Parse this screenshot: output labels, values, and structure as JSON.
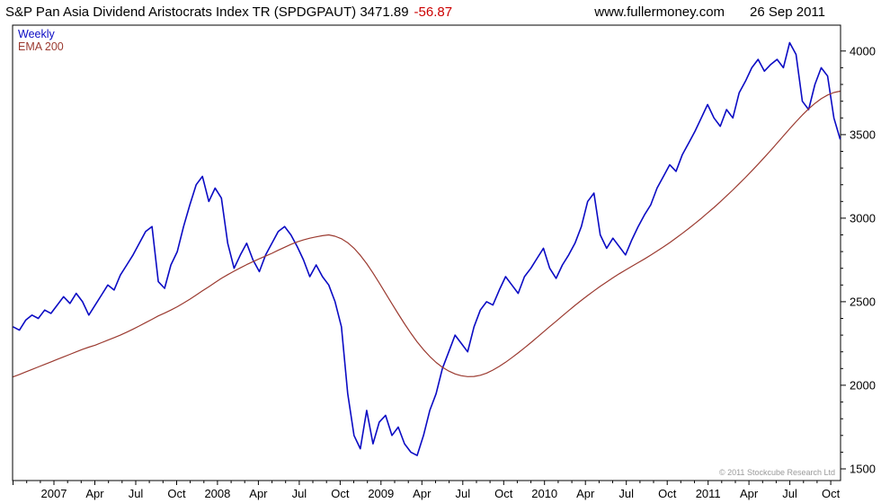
{
  "header": {
    "title": "S&P Pan Asia Dividend Aristocrats Index TR (SPDGPAUT) 3471.89",
    "change": "-56.87",
    "site": "www.fullermoney.com",
    "date": "26 Sep 2011"
  },
  "footer": {
    "copyright": "© 2011 Stockcube Research Ltd"
  },
  "colors": {
    "price": "#0b0bc4",
    "ema": "#9b3a30",
    "change": "#cc0000",
    "text": "#000000",
    "copyright": "#9a9a9a",
    "border": "#000000"
  },
  "chart_data": {
    "type": "line",
    "title": "S&P Pan Asia Dividend Aristocrats Index TR (SPDGPAUT)",
    "last_price": 3471.89,
    "change": -56.87,
    "frequency": "Weekly",
    "x_start": 2006.75,
    "x_step_years": 0.03861,
    "x_axis": {
      "range": [
        2006.747,
        2011.81
      ],
      "labels": [
        {
          "text": "2007",
          "t": 2007.0
        },
        {
          "text": "Apr",
          "t": 2007.25
        },
        {
          "text": "Jul",
          "t": 2007.5
        },
        {
          "text": "Oct",
          "t": 2007.75
        },
        {
          "text": "2008",
          "t": 2008.0
        },
        {
          "text": "Apr",
          "t": 2008.25
        },
        {
          "text": "Jul",
          "t": 2008.5
        },
        {
          "text": "Oct",
          "t": 2008.75
        },
        {
          "text": "2009",
          "t": 2009.0
        },
        {
          "text": "Apr",
          "t": 2009.25
        },
        {
          "text": "Jul",
          "t": 2009.5
        },
        {
          "text": "Oct",
          "t": 2009.75
        },
        {
          "text": "2010",
          "t": 2010.0
        },
        {
          "text": "Apr",
          "t": 2010.25
        },
        {
          "text": "Jul",
          "t": 2010.5
        },
        {
          "text": "Oct",
          "t": 2010.75
        },
        {
          "text": "2011",
          "t": 2011.0
        },
        {
          "text": "Apr",
          "t": 2011.25
        },
        {
          "text": "Jul",
          "t": 2011.5
        },
        {
          "text": "Oct",
          "t": 2011.75
        }
      ]
    },
    "y_axis": {
      "range": [
        1430,
        4155
      ],
      "ticks": [
        1500,
        2000,
        2500,
        3000,
        3500,
        4000
      ],
      "minor_step": 100,
      "position": "right"
    },
    "series": [
      {
        "name": "Weekly",
        "color_key": "price",
        "data_name": "price-line",
        "values": [
          2350,
          2330,
          2390,
          2420,
          2400,
          2450,
          2430,
          2480,
          2530,
          2490,
          2550,
          2500,
          2420,
          2480,
          2540,
          2600,
          2570,
          2660,
          2720,
          2780,
          2850,
          2920,
          2950,
          2620,
          2580,
          2720,
          2800,
          2950,
          3080,
          3200,
          3250,
          3100,
          3180,
          3120,
          2850,
          2700,
          2780,
          2850,
          2750,
          2680,
          2780,
          2850,
          2920,
          2950,
          2900,
          2830,
          2750,
          2650,
          2720,
          2650,
          2600,
          2500,
          2350,
          1950,
          1700,
          1620,
          1850,
          1650,
          1780,
          1820,
          1700,
          1750,
          1650,
          1600,
          1580,
          1700,
          1850,
          1950,
          2100,
          2200,
          2300,
          2250,
          2200,
          2350,
          2450,
          2500,
          2480,
          2570,
          2650,
          2600,
          2550,
          2650,
          2700,
          2760,
          2820,
          2700,
          2640,
          2720,
          2780,
          2850,
          2950,
          3100,
          3150,
          2900,
          2820,
          2880,
          2830,
          2780,
          2870,
          2950,
          3020,
          3080,
          3180,
          3250,
          3320,
          3280,
          3380,
          3450,
          3520,
          3600,
          3680,
          3600,
          3550,
          3650,
          3600,
          3750,
          3820,
          3900,
          3950,
          3880,
          3920,
          3950,
          3900,
          4050,
          3980,
          3700,
          3650,
          3800,
          3900,
          3850,
          3600,
          3471.89
        ]
      },
      {
        "name": "EMA 200",
        "color_key": "ema",
        "data_name": "ema-line",
        "values": [
          2050,
          2065,
          2080,
          2095,
          2110,
          2125,
          2140,
          2155,
          2170,
          2185,
          2200,
          2215,
          2228,
          2240,
          2255,
          2270,
          2285,
          2300,
          2318,
          2336,
          2355,
          2375,
          2395,
          2415,
          2432,
          2450,
          2470,
          2492,
          2515,
          2540,
          2565,
          2590,
          2615,
          2640,
          2662,
          2683,
          2703,
          2722,
          2740,
          2757,
          2773,
          2790,
          2808,
          2826,
          2843,
          2858,
          2870,
          2880,
          2888,
          2895,
          2900,
          2892,
          2877,
          2853,
          2820,
          2778,
          2728,
          2672,
          2612,
          2550,
          2488,
          2427,
          2368,
          2312,
          2260,
          2213,
          2172,
          2137,
          2108,
          2085,
          2068,
          2057,
          2052,
          2053,
          2060,
          2073,
          2091,
          2113,
          2138,
          2165,
          2194,
          2224,
          2255,
          2287,
          2319,
          2351,
          2383,
          2415,
          2447,
          2478,
          2508,
          2537,
          2565,
          2592,
          2618,
          2643,
          2667,
          2690,
          2712,
          2734,
          2756,
          2779,
          2803,
          2828,
          2854,
          2881,
          2909,
          2938,
          2968,
          2999,
          3031,
          3064,
          3098,
          3133,
          3169,
          3206,
          3244,
          3283,
          3323,
          3364,
          3406,
          3449,
          3492,
          3535,
          3577,
          3617,
          3654,
          3687,
          3715,
          3737,
          3752,
          3760
        ]
      }
    ]
  }
}
